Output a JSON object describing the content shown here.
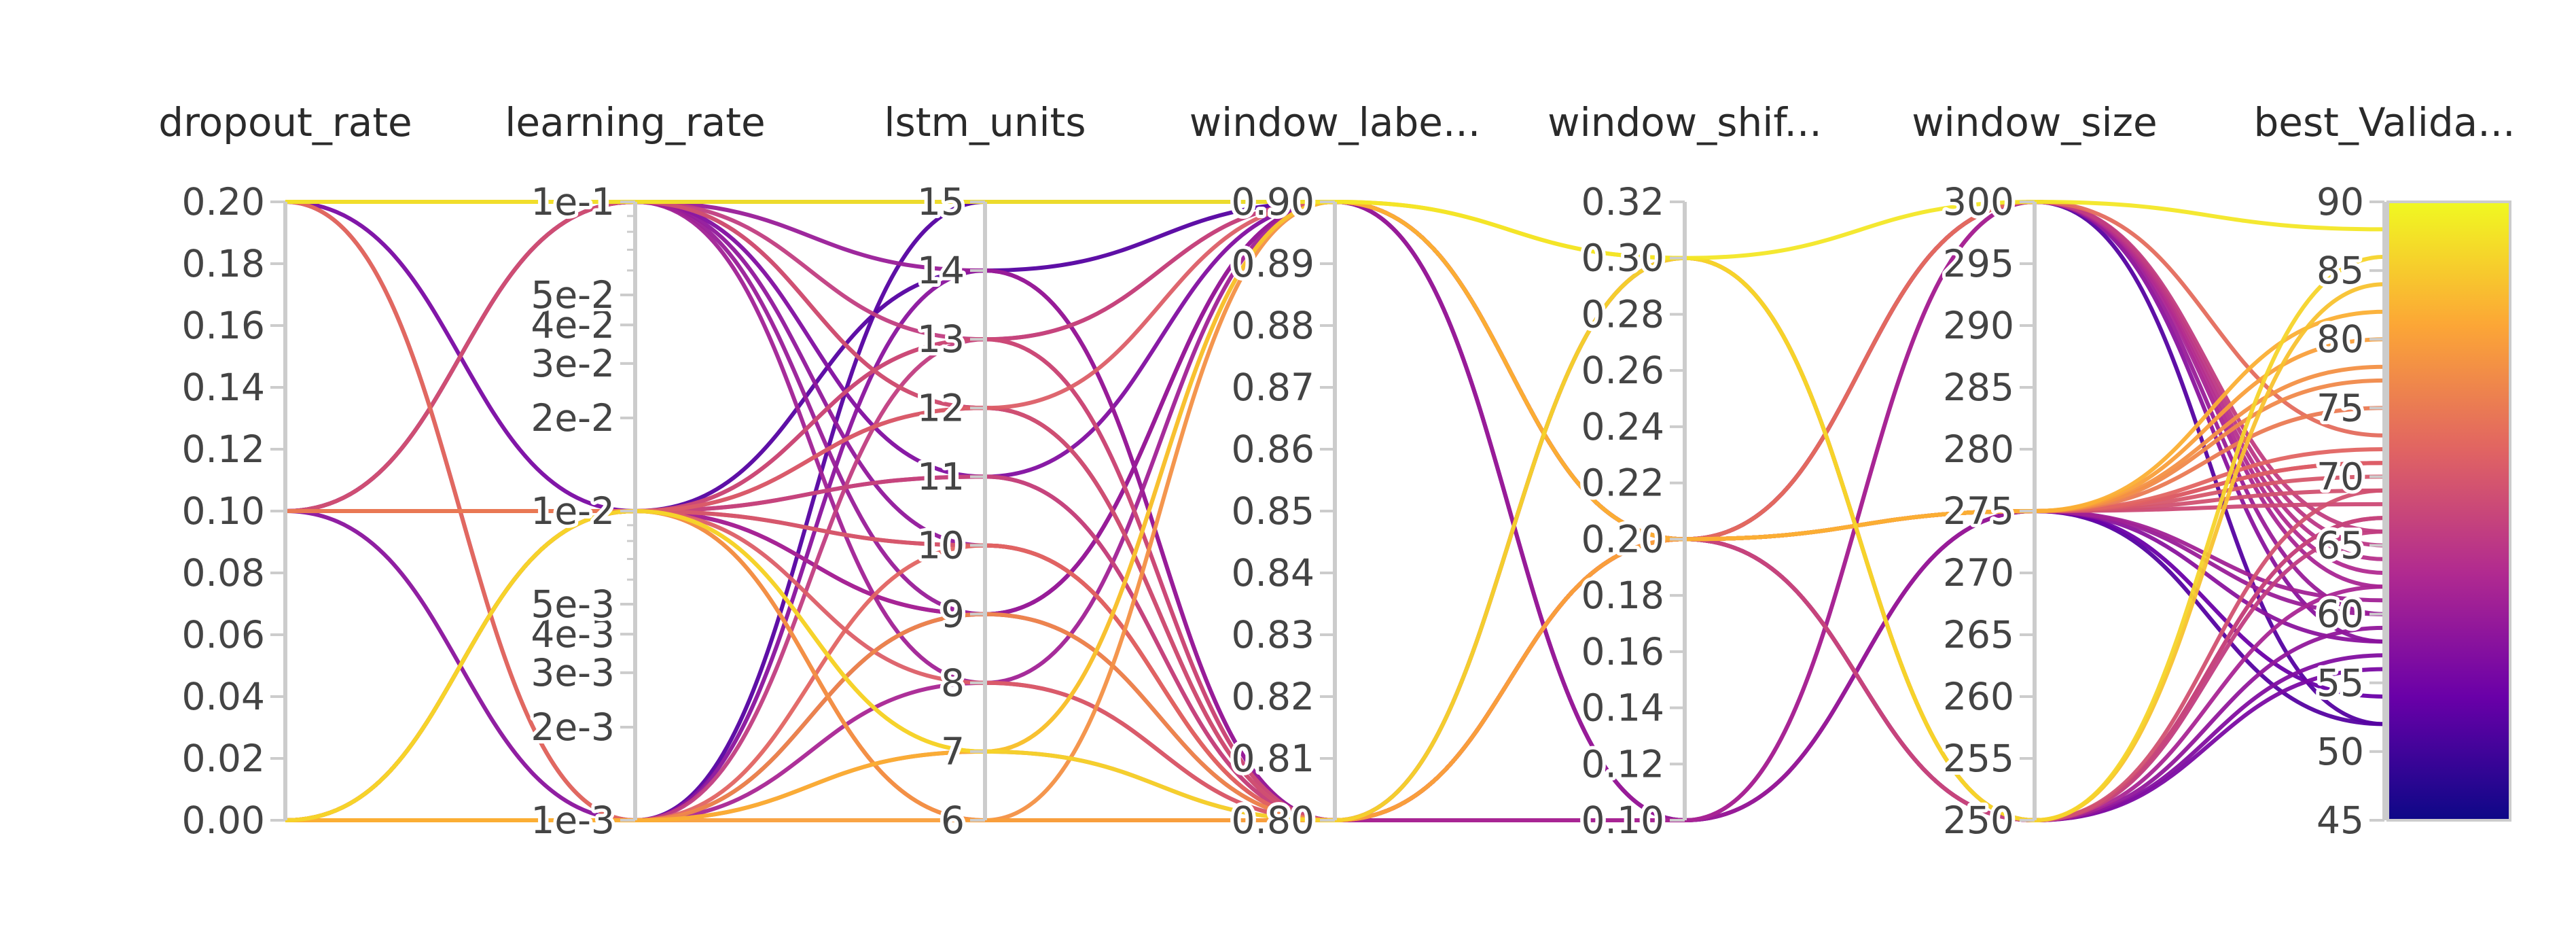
{
  "chart_data": {
    "type": "parallel_coordinates",
    "axes": [
      {
        "name": "dropout_rate",
        "label": "dropout_rate",
        "range": [
          0,
          0.2
        ],
        "scale": "linear",
        "ticks": [
          0,
          0.02,
          0.04,
          0.06,
          0.08,
          0.1,
          0.12,
          0.14,
          0.16,
          0.18,
          0.2
        ],
        "tick_labels": [
          "0.00",
          "0.02",
          "0.04",
          "0.06",
          "0.08",
          "0.10",
          "0.12",
          "0.14",
          "0.16",
          "0.18",
          "0.20"
        ]
      },
      {
        "name": "learning_rate",
        "label": "learning_rate",
        "range": [
          0.001,
          0.1
        ],
        "scale": "log",
        "ticks": [
          0.001,
          0.002,
          0.003,
          0.004,
          0.005,
          0.01,
          0.02,
          0.03,
          0.04,
          0.05,
          0.1
        ],
        "tick_labels": [
          "1e-3",
          "2e-3",
          "3e-3",
          "4e-3",
          "5e-3",
          "1e-2",
          "2e-2",
          "3e-2",
          "4e-2",
          "5e-2",
          "1e-1"
        ],
        "minor_ticks": [
          0.006,
          0.007,
          0.008,
          0.009,
          0.06,
          0.07,
          0.08,
          0.09
        ]
      },
      {
        "name": "lstm_units",
        "label": "lstm_units",
        "range": [
          6,
          15
        ],
        "scale": "linear",
        "ticks": [
          6,
          7,
          8,
          9,
          10,
          11,
          12,
          13,
          14,
          15
        ],
        "tick_labels": [
          "6",
          "7",
          "8",
          "9",
          "10",
          "11",
          "12",
          "13",
          "14",
          "15"
        ]
      },
      {
        "name": "window_label",
        "label": "window_labe...",
        "range": [
          0.8,
          0.9
        ],
        "scale": "linear",
        "ticks": [
          0.8,
          0.81,
          0.82,
          0.83,
          0.84,
          0.85,
          0.86,
          0.87,
          0.88,
          0.89,
          0.9
        ],
        "tick_labels": [
          "0.80",
          "0.81",
          "0.82",
          "0.83",
          "0.84",
          "0.85",
          "0.86",
          "0.87",
          "0.88",
          "0.89",
          "0.90"
        ]
      },
      {
        "name": "window_shift",
        "label": "window_shif...",
        "range": [
          0.1,
          0.32
        ],
        "scale": "linear",
        "ticks": [
          0.1,
          0.12,
          0.14,
          0.16,
          0.18,
          0.2,
          0.22,
          0.24,
          0.26,
          0.28,
          0.3,
          0.32
        ],
        "tick_labels": [
          "0.10",
          "0.12",
          "0.14",
          "0.16",
          "0.18",
          "0.20",
          "0.22",
          "0.24",
          "0.26",
          "0.28",
          "0.30",
          "0.32"
        ]
      },
      {
        "name": "window_size",
        "label": "window_size",
        "range": [
          250,
          300
        ],
        "scale": "linear",
        "ticks": [
          250,
          255,
          260,
          265,
          270,
          275,
          280,
          285,
          290,
          295,
          300
        ],
        "tick_labels": [
          "250",
          "255",
          "260",
          "265",
          "270",
          "275",
          "280",
          "285",
          "290",
          "295",
          "300"
        ]
      },
      {
        "name": "best_Validation",
        "label": "best_Valida...",
        "range": [
          45,
          90
        ],
        "scale": "linear",
        "ticks": [
          45,
          50,
          55,
          60,
          65,
          70,
          75,
          80,
          85,
          90
        ],
        "tick_labels": [
          "45",
          "50",
          "55",
          "60",
          "65",
          "70",
          "75",
          "80",
          "85",
          "90"
        ]
      }
    ],
    "colorscale": {
      "name": "plasma",
      "range": [
        45,
        90
      ],
      "stops": [
        "#0d0887",
        "#6a00a8",
        "#b12a90",
        "#e16462",
        "#fca636",
        "#f0f921"
      ]
    },
    "runs": [
      [
        0.2,
        0.1,
        15,
        0.9,
        0.3,
        300,
        88
      ],
      [
        0.2,
        0.1,
        15,
        0.9,
        0.2,
        275,
        54
      ],
      [
        0.2,
        0.1,
        14,
        0.8,
        0.1,
        300,
        60
      ],
      [
        0.1,
        0.01,
        13,
        0.8,
        0.2,
        275,
        68
      ],
      [
        0.2,
        0.01,
        9,
        0.9,
        0.2,
        250,
        56
      ],
      [
        0.1,
        0.1,
        12,
        0.8,
        0.2,
        275,
        69
      ],
      [
        0.0,
        0.01,
        11,
        0.8,
        0.2,
        250,
        67
      ],
      [
        0.0,
        0.001,
        9,
        0.9,
        0.1,
        275,
        58
      ],
      [
        0.2,
        0.001,
        7,
        0.8,
        0.2,
        300,
        73
      ],
      [
        0.1,
        0.01,
        6,
        0.8,
        0.2,
        275,
        75
      ],
      [
        0.0,
        0.01,
        10,
        0.8,
        0.3,
        250,
        69
      ],
      [
        0.0,
        0.001,
        13,
        0.9,
        0.2,
        300,
        66
      ],
      [
        0.1,
        0.1,
        9,
        0.9,
        0.1,
        275,
        60
      ],
      [
        0.0,
        0.01,
        8,
        0.8,
        0.2,
        275,
        71
      ],
      [
        0.2,
        0.1,
        10,
        0.8,
        0.2,
        250,
        59
      ],
      [
        0.1,
        0.01,
        14,
        0.9,
        0.2,
        300,
        52
      ],
      [
        0.0,
        0.001,
        15,
        0.9,
        0.1,
        275,
        52
      ],
      [
        0.0,
        0.01,
        7,
        0.9,
        0.3,
        250,
        84
      ],
      [
        0.1,
        0.01,
        12,
        0.8,
        0.2,
        300,
        63
      ],
      [
        0.0,
        0.001,
        6,
        0.8,
        0.2,
        275,
        80
      ],
      [
        0.1,
        0.1,
        8,
        0.9,
        0.2,
        275,
        61
      ],
      [
        0.0,
        0.01,
        11,
        0.8,
        0.2,
        300,
        65
      ],
      [
        0.2,
        0.1,
        13,
        0.8,
        0.3,
        250,
        66
      ],
      [
        0.0,
        0.001,
        10,
        0.8,
        0.2,
        275,
        72
      ],
      [
        0.1,
        0.01,
        9,
        0.8,
        0.2,
        250,
        62
      ],
      [
        0.0,
        0.01,
        12,
        0.9,
        0.2,
        275,
        71
      ],
      [
        0.2,
        0.001,
        8,
        0.8,
        0.1,
        300,
        62
      ],
      [
        0.1,
        0.1,
        11,
        0.9,
        0.2,
        250,
        57
      ],
      [
        0.0,
        0.01,
        6,
        0.9,
        0.2,
        275,
        78
      ],
      [
        0.1,
        0.001,
        14,
        0.8,
        0.2,
        300,
        58
      ],
      [
        0.0,
        0.01,
        7,
        0.8,
        0.3,
        250,
        86
      ],
      [
        0.0,
        0.001,
        9,
        0.8,
        0.2,
        275,
        77
      ],
      [
        0.1,
        0.01,
        10,
        0.8,
        0.2,
        275,
        70
      ],
      [
        0.2,
        0.1,
        12,
        0.8,
        0.2,
        300,
        64
      ],
      [
        0.0,
        0.001,
        7,
        0.9,
        0.2,
        275,
        82
      ],
      [
        0.1,
        0.01,
        13,
        0.9,
        0.2,
        250,
        67
      ]
    ]
  }
}
